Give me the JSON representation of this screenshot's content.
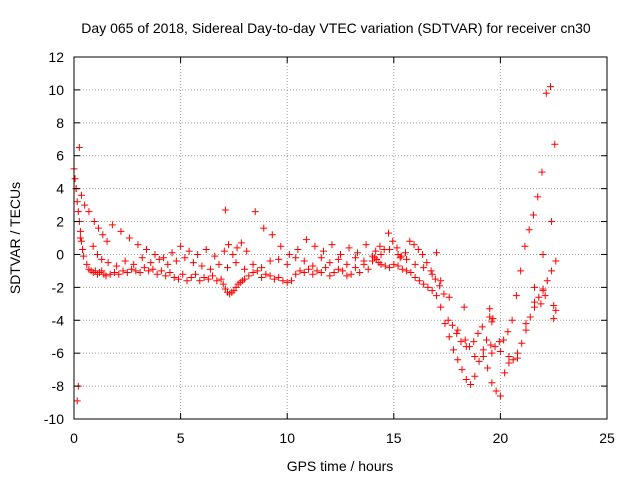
{
  "chart_data": {
    "type": "scatter",
    "title": "Day 065 of 2018, Sidereal Day-to-day VTEC variation (SDTVAR) for receiver cn30",
    "xlabel": "GPS time / hours",
    "ylabel": "SDTVAR / TECUs",
    "xlim": [
      0,
      25
    ],
    "ylim": [
      -10,
      12
    ],
    "xticks": [
      0,
      5,
      10,
      15,
      20,
      25
    ],
    "yticks": [
      -10,
      -8,
      -6,
      -4,
      -2,
      0,
      2,
      4,
      6,
      8,
      10,
      12
    ],
    "grid": true,
    "marker": "+",
    "color": "#ff0000",
    "series": [
      {
        "name": "SDTVAR",
        "x": [
          0.0,
          0.05,
          0.1,
          0.15,
          0.2,
          0.25,
          0.3,
          0.35,
          0.4,
          0.45,
          0.6,
          0.7,
          0.8,
          0.9,
          1.0,
          1.1,
          1.2,
          1.3,
          1.4,
          1.5,
          1.7,
          1.9,
          2.1,
          2.3,
          2.5,
          2.7,
          2.9,
          3.1,
          3.3,
          3.5,
          3.7,
          3.9,
          4.1,
          4.3,
          4.5,
          4.7,
          4.9,
          5.1,
          5.3,
          5.5,
          5.7,
          5.9,
          6.1,
          6.3,
          6.5,
          6.7,
          6.9,
          7.0,
          7.1,
          7.2,
          7.3,
          7.4,
          7.5,
          7.6,
          7.7,
          7.8,
          7.9,
          8.0,
          8.2,
          8.4,
          8.6,
          8.8,
          9.0,
          9.2,
          9.4,
          9.6,
          9.8,
          10.0,
          10.2,
          10.4,
          10.6,
          10.8,
          11.0,
          11.2,
          11.4,
          11.6,
          11.8,
          12.0,
          12.2,
          12.4,
          12.6,
          12.8,
          13.0,
          13.2,
          13.4,
          13.6,
          13.8,
          14.0,
          14.1,
          14.2,
          14.3,
          14.4,
          14.6,
          14.8,
          15.0,
          15.2,
          15.4,
          15.6,
          15.8,
          16.0,
          16.2,
          16.4,
          16.6,
          16.8,
          17.0,
          17.2,
          17.4,
          17.6,
          17.8,
          18.0,
          18.2,
          18.4,
          18.6,
          18.8,
          19.0,
          19.2,
          19.4,
          19.6,
          19.8,
          20.0,
          20.2,
          20.4,
          20.6,
          20.8,
          21.0,
          21.2,
          21.4,
          21.6,
          21.8,
          22.0,
          22.2,
          22.4,
          22.6,
          15.3,
          17.0,
          22.0,
          22.1,
          22.5,
          22.6,
          22.5,
          21.9,
          21.6,
          19.5,
          18.3,
          0.15,
          0.2,
          0.3,
          0.9,
          1.1,
          1.3,
          1.6,
          2.0,
          2.4,
          2.8,
          3.2,
          3.6,
          4.0,
          4.4,
          4.8,
          5.2,
          5.6,
          6.0,
          6.4,
          6.8,
          7.2,
          7.6,
          8.0,
          8.4,
          8.8,
          9.2,
          9.6,
          10.0,
          10.4,
          10.8,
          11.2,
          11.6,
          12.0,
          12.4,
          12.8,
          13.2,
          13.6,
          14.0,
          14.4,
          14.8,
          15.2,
          15.6,
          16.0,
          16.4,
          16.8,
          17.2,
          17.6,
          18.0,
          18.4,
          18.8,
          19.2,
          19.6,
          20.0,
          20.4,
          20.8,
          21.2,
          21.6,
          22.0,
          22.4,
          0.1,
          0.25,
          0.35,
          0.5,
          0.7,
          0.95,
          1.15,
          1.35,
          1.55,
          1.8,
          2.2,
          2.6,
          3.0,
          3.4,
          3.8,
          4.2,
          4.6,
          5.0,
          5.4,
          5.8,
          6.2,
          6.6,
          7.05,
          7.25,
          7.45,
          7.65,
          7.85,
          8.1,
          8.5,
          8.9,
          9.3,
          9.7,
          10.1,
          10.5,
          10.9,
          11.3,
          11.7,
          12.1,
          12.5,
          12.9,
          13.3,
          13.7,
          14.15,
          14.35,
          14.55,
          14.75,
          14.95,
          15.15,
          15.35,
          15.55,
          15.75,
          15.95,
          16.15,
          16.35,
          16.55,
          16.75,
          16.95,
          17.15,
          17.35,
          17.55,
          17.75,
          17.95,
          18.15,
          18.35,
          18.55,
          18.75,
          18.95,
          19.15,
          19.35,
          19.55,
          19.75,
          19.95,
          20.15,
          20.35,
          20.55,
          20.75,
          20.95,
          21.15,
          21.35,
          21.55,
          21.75,
          21.95,
          22.15,
          22.35,
          22.55,
          7.1,
          19.5,
          19.6,
          19.65
        ],
        "y": [
          5.2,
          4.6,
          4.0,
          3.2,
          2.6,
          2.0,
          1.4,
          0.8,
          0.3,
          -0.1,
          -0.6,
          -0.9,
          -1.0,
          -1.1,
          -1.0,
          -1.2,
          -1.1,
          -1.0,
          -1.2,
          -1.3,
          -1.2,
          -1.1,
          -1.2,
          -1.0,
          -1.1,
          -0.9,
          -1.0,
          -1.1,
          -0.8,
          -1.0,
          -0.9,
          -1.2,
          -1.0,
          -1.3,
          -1.1,
          -1.4,
          -1.5,
          -1.2,
          -1.6,
          -1.4,
          -1.2,
          -1.6,
          -1.4,
          -1.5,
          -1.3,
          -1.6,
          -1.5,
          -1.8,
          -2.1,
          -2.3,
          -2.4,
          -2.3,
          -2.2,
          -2.0,
          -1.8,
          -1.7,
          -1.6,
          -1.5,
          -1.3,
          -1.1,
          -1.0,
          -1.4,
          -1.2,
          -1.3,
          -1.5,
          -1.4,
          -1.6,
          -1.7,
          -1.6,
          -1.2,
          -1.0,
          -1.1,
          -0.9,
          -1.2,
          -1.0,
          -1.1,
          -0.8,
          -1.3,
          -1.1,
          -0.9,
          -1.0,
          -1.3,
          -1.2,
          -0.8,
          -1.1,
          -0.6,
          -0.9,
          -0.4,
          -0.2,
          -0.3,
          -0.5,
          -0.6,
          -0.7,
          -0.8,
          -0.6,
          -0.7,
          -0.9,
          -1.0,
          -1.1,
          -1.4,
          -1.6,
          -1.8,
          -2.0,
          -2.2,
          -2.5,
          -3.2,
          -4.2,
          -5.0,
          -5.8,
          -6.4,
          -7.0,
          -7.6,
          -7.9,
          -7.4,
          -6.5,
          -6.2,
          -6.9,
          -7.8,
          -8.3,
          -8.6,
          -7.2,
          -6.6,
          -6.4,
          -6.0,
          -5.4,
          -4.6,
          -3.8,
          -3.2,
          -2.6,
          -2.2,
          -1.6,
          -1.0,
          -0.4,
          -0.2,
          0.1,
          -2.1,
          -2.5,
          -3.1,
          -3.4,
          -3.9,
          -3.0,
          -2.9,
          -3.3,
          -3.2,
          -8.9,
          -8.0,
          1.0,
          0.5,
          0.0,
          -0.3,
          -0.5,
          -0.7,
          -0.4,
          -0.6,
          -0.2,
          -0.5,
          -0.3,
          -0.6,
          -0.4,
          -0.2,
          -0.5,
          -0.7,
          -0.9,
          -0.6,
          -0.8,
          -0.5,
          -0.9,
          -0.6,
          -0.8,
          -0.4,
          -0.3,
          -0.6,
          -0.2,
          -0.4,
          -0.7,
          -0.2,
          -0.5,
          -0.3,
          -0.6,
          -0.2,
          -0.4,
          -0.1,
          0.0,
          0.3,
          0.0,
          -0.3,
          -0.6,
          -0.8,
          -1.2,
          -1.6,
          -2.6,
          -4.6,
          -5.6,
          -6.2,
          -5.8,
          -6.0,
          -5.9,
          -6.2,
          -6.3,
          -4.2,
          -2.0,
          0.0,
          2.0,
          4.0,
          6.5,
          3.6,
          3.0,
          2.6,
          2.0,
          1.6,
          1.2,
          0.8,
          1.8,
          1.4,
          1.0,
          0.6,
          0.3,
          0.0,
          -0.2,
          0.1,
          0.5,
          0.2,
          0.0,
          0.3,
          -0.1,
          0.2,
          0.6,
          0.0,
          0.4,
          0.7,
          0.2,
          2.6,
          1.6,
          1.2,
          0.5,
          0.0,
          0.3,
          0.9,
          0.5,
          0.2,
          0.6,
          0.0,
          0.4,
          0.1,
          0.6,
          0.2,
          0.5,
          0.3,
          1.3,
          0.8,
          0.4,
          -0.1,
          0.1,
          0.8,
          0.6,
          0.3,
          0.0,
          -0.5,
          -1.0,
          -1.5,
          -1.9,
          -2.4,
          -4.0,
          -4.3,
          -4.8,
          -5.3,
          -5.2,
          -5.6,
          -5.3,
          -4.8,
          -4.4,
          -5.2,
          -5.5,
          -5.6,
          -5.3,
          -5.2,
          -4.7,
          -4.0,
          -2.5,
          -1.0,
          0.5,
          1.5,
          2.4,
          3.5,
          5.0,
          9.8,
          10.2,
          6.7,
          2.7,
          -3.8,
          -4.1,
          -3.9
        ],
        "color": "#ff0000",
        "marker": "+"
      }
    ]
  }
}
